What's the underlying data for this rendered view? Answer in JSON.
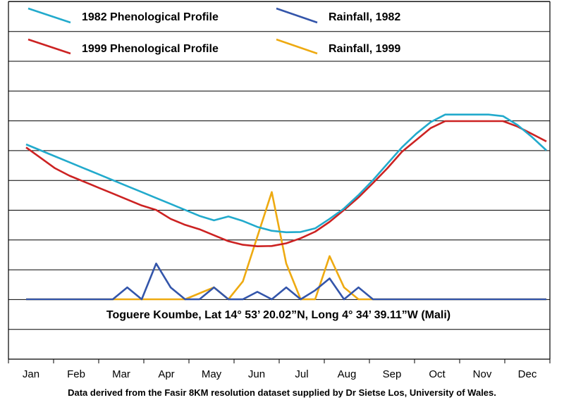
{
  "chart_data": {
    "type": "line",
    "categories": [
      "Jan",
      "Feb",
      "Mar",
      "Apr",
      "May",
      "Jun",
      "Jul",
      "Aug",
      "Sep",
      "Oct",
      "Nov",
      "Dec"
    ],
    "grid": "horizontal",
    "legend_position": "top",
    "annotation": "Toguere Koumbe, Lat 14° 53’ 20.02”N, Long 4° 34’ 39.11”W (Mali)",
    "source_note": "Data derived from the Fasir 8KM resolution dataset supplied by Dr Sietse Los, University of Wales.",
    "series": [
      {
        "name": "1982 Phenological Profile",
        "color": "#22aacc",
        "x": [
          0,
          1,
          2,
          3,
          4,
          5,
          6,
          7,
          8,
          9,
          10,
          11,
          12,
          13,
          14,
          15,
          16,
          17,
          18,
          19,
          20,
          21,
          22,
          23,
          24,
          25,
          26,
          27,
          28,
          29,
          30,
          31,
          32,
          33,
          34,
          35,
          36
        ],
        "values": [
          5.2,
          5.0,
          4.8,
          4.6,
          4.4,
          4.2,
          4.0,
          3.8,
          3.6,
          3.4,
          3.2,
          3.0,
          2.8,
          2.65,
          2.78,
          2.63,
          2.43,
          2.3,
          2.25,
          2.26,
          2.38,
          2.7,
          3.05,
          3.5,
          4.0,
          4.55,
          5.1,
          5.56,
          5.95,
          6.2,
          6.2,
          6.2,
          6.2,
          6.15,
          5.85,
          5.45,
          5.0
        ]
      },
      {
        "name": "1999 Phenological Profile",
        "color": "#cc2222",
        "x": [
          0,
          1,
          2,
          3,
          4,
          5,
          6,
          7,
          8,
          9,
          10,
          11,
          12,
          13,
          14,
          15,
          16,
          17,
          18,
          19,
          20,
          21,
          22,
          23,
          24,
          25,
          26,
          27,
          28,
          29,
          30,
          31,
          32,
          33,
          34,
          35,
          36
        ],
        "values": [
          5.1,
          4.75,
          4.4,
          4.15,
          3.95,
          3.75,
          3.55,
          3.35,
          3.15,
          3.0,
          2.7,
          2.5,
          2.35,
          2.15,
          1.95,
          1.83,
          1.78,
          1.79,
          1.88,
          2.05,
          2.27,
          2.6,
          3.0,
          3.42,
          3.9,
          4.4,
          4.95,
          5.35,
          5.75,
          5.98,
          5.98,
          5.98,
          5.98,
          5.98,
          5.8,
          5.55,
          5.3
        ]
      },
      {
        "name": "Rainfall, 1982",
        "color": "#3355aa",
        "x": [
          0,
          1,
          2,
          3,
          4,
          5,
          6,
          7,
          8,
          9,
          10,
          11,
          12,
          13,
          14,
          15,
          16,
          17,
          18,
          19,
          20,
          21,
          22,
          23,
          24,
          25,
          26,
          27,
          28,
          29,
          30,
          31,
          32,
          33,
          34,
          35,
          36
        ],
        "values": [
          0,
          0,
          0,
          0,
          0,
          0,
          0,
          0.4,
          0,
          1.2,
          0.4,
          0,
          0,
          0.4,
          0,
          0,
          0.25,
          0,
          0.4,
          0,
          0.3,
          0.7,
          0,
          0.4,
          0,
          0,
          0,
          0,
          0,
          0,
          0,
          0,
          0,
          0,
          0,
          0,
          0
        ]
      },
      {
        "name": "Rainfall, 1999",
        "color": "#eeaa11",
        "x": [
          0,
          1,
          2,
          3,
          4,
          5,
          6,
          7,
          8,
          9,
          10,
          11,
          12,
          13,
          14,
          15,
          16,
          17,
          18,
          19,
          20,
          21,
          22,
          23,
          24,
          25,
          26,
          27,
          28,
          29,
          30,
          31,
          32,
          33,
          34,
          35,
          36
        ],
        "values": [
          0,
          0,
          0,
          0,
          0,
          0,
          0,
          0,
          0,
          0,
          0,
          0,
          0.2,
          0.4,
          0,
          0.6,
          2.1,
          3.6,
          1.2,
          0,
          0,
          1.45,
          0.4,
          0,
          0,
          0,
          0,
          0,
          0,
          0,
          0,
          0,
          0,
          0,
          0,
          0,
          0
        ]
      }
    ],
    "legend": [
      {
        "label": "1982 Phenological Profile",
        "color": "#22aacc"
      },
      {
        "label": "Rainfall, 1982",
        "color": "#3355aa"
      },
      {
        "label": "1999 Phenological Profile",
        "color": "#cc2222"
      },
      {
        "label": "Rainfall, 1999",
        "color": "#eeaa11"
      }
    ]
  }
}
